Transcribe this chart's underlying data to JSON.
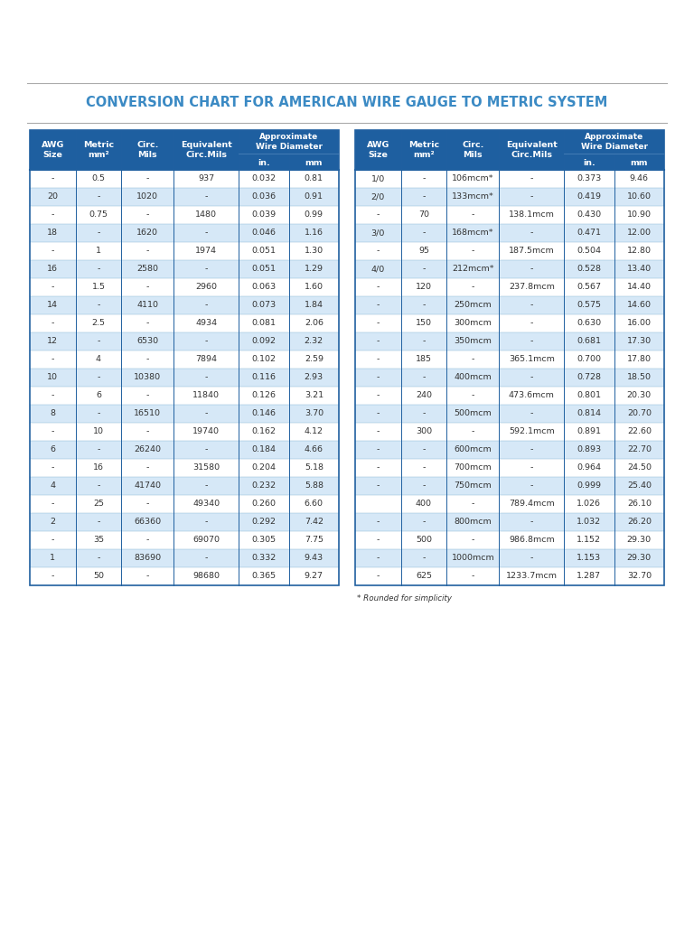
{
  "title": "CONVERSION CHART FOR AMERICAN WIRE GAUGE TO METRIC SYSTEM",
  "title_color": "#3b8ac4",
  "header_bg": "#1e5fa0",
  "header_text_color": "#ffffff",
  "row_bg_even": "#d6e8f7",
  "row_bg_odd": "#ffffff",
  "text_color": "#333333",
  "border_color": "#2060a0",
  "line_color_light": "#90bcd8",
  "footnote": "* Rounded for simplicity",
  "left_data": [
    [
      "-",
      "0.5",
      "-",
      "937",
      "0.032",
      "0.81"
    ],
    [
      "20",
      "-",
      "1020",
      "-",
      "0.036",
      "0.91"
    ],
    [
      "-",
      "0.75",
      "-",
      "1480",
      "0.039",
      "0.99"
    ],
    [
      "18",
      "-",
      "1620",
      "-",
      "0.046",
      "1.16"
    ],
    [
      "-",
      "1",
      "-",
      "1974",
      "0.051",
      "1.30"
    ],
    [
      "16",
      "-",
      "2580",
      "-",
      "0.051",
      "1.29"
    ],
    [
      "-",
      "1.5",
      "-",
      "2960",
      "0.063",
      "1.60"
    ],
    [
      "14",
      "-",
      "4110",
      "-",
      "0.073",
      "1.84"
    ],
    [
      "-",
      "2.5",
      "-",
      "4934",
      "0.081",
      "2.06"
    ],
    [
      "12",
      "-",
      "6530",
      "-",
      "0.092",
      "2.32"
    ],
    [
      "-",
      "4",
      "-",
      "7894",
      "0.102",
      "2.59"
    ],
    [
      "10",
      "-",
      "10380",
      "-",
      "0.116",
      "2.93"
    ],
    [
      "-",
      "6",
      "-",
      "11840",
      "0.126",
      "3.21"
    ],
    [
      "8",
      "-",
      "16510",
      "-",
      "0.146",
      "3.70"
    ],
    [
      "-",
      "10",
      "-",
      "19740",
      "0.162",
      "4.12"
    ],
    [
      "6",
      "-",
      "26240",
      "-",
      "0.184",
      "4.66"
    ],
    [
      "-",
      "16",
      "-",
      "31580",
      "0.204",
      "5.18"
    ],
    [
      "4",
      "-",
      "41740",
      "-",
      "0.232",
      "5.88"
    ],
    [
      "-",
      "25",
      "-",
      "49340",
      "0.260",
      "6.60"
    ],
    [
      "2",
      "-",
      "66360",
      "-",
      "0.292",
      "7.42"
    ],
    [
      "-",
      "35",
      "-",
      "69070",
      "0.305",
      "7.75"
    ],
    [
      "1",
      "-",
      "83690",
      "-",
      "0.332",
      "9.43"
    ],
    [
      "-",
      "50",
      "-",
      "98680",
      "0.365",
      "9.27"
    ]
  ],
  "right_data": [
    [
      "1/0",
      "-",
      "106mcm*",
      "-",
      "0.373",
      "9.46"
    ],
    [
      "2/0",
      "-",
      "133mcm*",
      "-",
      "0.419",
      "10.60"
    ],
    [
      "-",
      "70",
      "-",
      "138.1mcm",
      "0.430",
      "10.90"
    ],
    [
      "3/0",
      "-",
      "168mcm*",
      "-",
      "0.471",
      "12.00"
    ],
    [
      "-",
      "95",
      "-",
      "187.5mcm",
      "0.504",
      "12.80"
    ],
    [
      "4/0",
      "-",
      "212mcm*",
      "-",
      "0.528",
      "13.40"
    ],
    [
      "-",
      "120",
      "-",
      "237.8mcm",
      "0.567",
      "14.40"
    ],
    [
      "-",
      "-",
      "250mcm",
      "-",
      "0.575",
      "14.60"
    ],
    [
      "-",
      "150",
      "300mcm",
      "-",
      "0.630",
      "16.00"
    ],
    [
      "-",
      "-",
      "350mcm",
      "-",
      "0.681",
      "17.30"
    ],
    [
      "-",
      "185",
      "-",
      "365.1mcm",
      "0.700",
      "17.80"
    ],
    [
      "-",
      "-",
      "400mcm",
      "-",
      "0.728",
      "18.50"
    ],
    [
      "-",
      "240",
      "-",
      "473.6mcm",
      "0.801",
      "20.30"
    ],
    [
      "-",
      "-",
      "500mcm",
      "-",
      "0.814",
      "20.70"
    ],
    [
      "-",
      "300",
      "-",
      "592.1mcm",
      "0.891",
      "22.60"
    ],
    [
      "-",
      "-",
      "600mcm",
      "-",
      "0.893",
      "22.70"
    ],
    [
      "-",
      "-",
      "700mcm",
      "-",
      "0.964",
      "24.50"
    ],
    [
      "-",
      "-",
      "750mcm",
      "-",
      "0.999",
      "25.40"
    ],
    [
      "",
      "400",
      "-",
      "789.4mcm",
      "1.026",
      "26.10"
    ],
    [
      "-",
      "-",
      "800mcm",
      "-",
      "1.032",
      "26.20"
    ],
    [
      "-",
      "500",
      "-",
      "986.8mcm",
      "1.152",
      "29.30"
    ],
    [
      "-",
      "-",
      "1000mcm",
      "-",
      "1.153",
      "29.30"
    ],
    [
      "-",
      "625",
      "-",
      "1233.7mcm",
      "1.287",
      "32.70"
    ]
  ]
}
